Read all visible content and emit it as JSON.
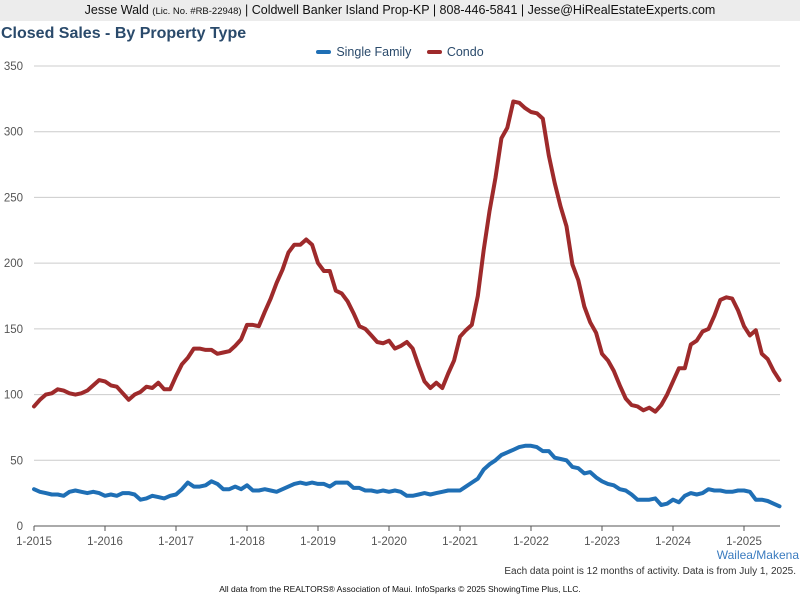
{
  "header": {
    "agent": "Jesse Wald",
    "license": "(Lic. No. #RB-22948)",
    "rest": "| Coldwell Banker Island Prop-KP | 808-446-5841 | Jesse@HiRealEstateExperts.com"
  },
  "footer": {
    "area": "Wailea/Makena",
    "note": "Each data point is 12 months of activity. Data is from July 1, 2025.",
    "source": "All data from the REALTORS® Association of Maui. InfoSparks © 2025 ShowingTime Plus, LLC."
  },
  "colors": {
    "single_family": "#1f6fb5",
    "condo": "#9e2a2b",
    "grid": "#cccccc",
    "axis": "#555555"
  },
  "chart_data": {
    "type": "line",
    "title": "Closed Sales - By Property Type",
    "xlabel": "",
    "ylabel": "",
    "ylim": [
      0,
      350
    ],
    "yticks": [
      0,
      50,
      100,
      150,
      200,
      250,
      300,
      350
    ],
    "xticks": [
      "1-2015",
      "1-2016",
      "1-2017",
      "1-2018",
      "1-2019",
      "1-2020",
      "1-2021",
      "1-2022",
      "1-2023",
      "1-2024",
      "1-2025"
    ],
    "grid": true,
    "legend_position": "top-center",
    "x_start": "2015-01",
    "x_end": "2025-06",
    "frequency": "monthly",
    "series": [
      {
        "name": "Single Family",
        "values": [
          28,
          26,
          25,
          24,
          24,
          23,
          26,
          27,
          26,
          25,
          26,
          25,
          23,
          24,
          23,
          25,
          25,
          24,
          20,
          21,
          23,
          22,
          21,
          23,
          24,
          28,
          33,
          30,
          30,
          31,
          34,
          32,
          28,
          28,
          30,
          28,
          31,
          27,
          27,
          28,
          27,
          26,
          28,
          30,
          32,
          33,
          32,
          33,
          32,
          32,
          30,
          33,
          33,
          33,
          29,
          29,
          27,
          27,
          26,
          27,
          26,
          27,
          26,
          23,
          23,
          24,
          25,
          24,
          25,
          26,
          27,
          27,
          27,
          30,
          33,
          36,
          43,
          47,
          50,
          54,
          56,
          58,
          60,
          61,
          61,
          60,
          57,
          57,
          52,
          51,
          50,
          45,
          44,
          40,
          41,
          37,
          34,
          32,
          31,
          28,
          27,
          24,
          20,
          20,
          20,
          21,
          16,
          17,
          20,
          18,
          23,
          25,
          24,
          25,
          28,
          27,
          27,
          26,
          26,
          27,
          27,
          26,
          20,
          20,
          19,
          17,
          15
        ]
      },
      {
        "name": "Condo",
        "values": [
          91,
          96,
          100,
          101,
          104,
          103,
          101,
          100,
          101,
          103,
          107,
          111,
          110,
          107,
          106,
          101,
          96,
          100,
          102,
          106,
          105,
          109,
          104,
          104,
          114,
          123,
          128,
          135,
          135,
          134,
          134,
          131,
          132,
          133,
          137,
          142,
          153,
          153,
          152,
          163,
          173,
          185,
          195,
          208,
          214,
          214,
          218,
          214,
          200,
          194,
          194,
          179,
          177,
          171,
          162,
          152,
          150,
          145,
          140,
          139,
          141,
          135,
          137,
          140,
          135,
          122,
          110,
          105,
          109,
          105,
          116,
          126,
          144,
          149,
          153,
          175,
          210,
          240,
          265,
          295,
          303,
          323,
          322,
          318,
          315,
          314,
          310,
          282,
          261,
          243,
          228,
          199,
          187,
          167,
          155,
          147,
          131,
          126,
          118,
          107,
          97,
          92,
          91,
          88,
          90,
          87,
          92,
          100,
          110,
          120,
          120,
          138,
          141,
          148,
          150,
          160,
          172,
          174,
          173,
          164,
          152,
          145,
          149,
          131,
          127,
          118,
          111
        ]
      }
    ]
  }
}
